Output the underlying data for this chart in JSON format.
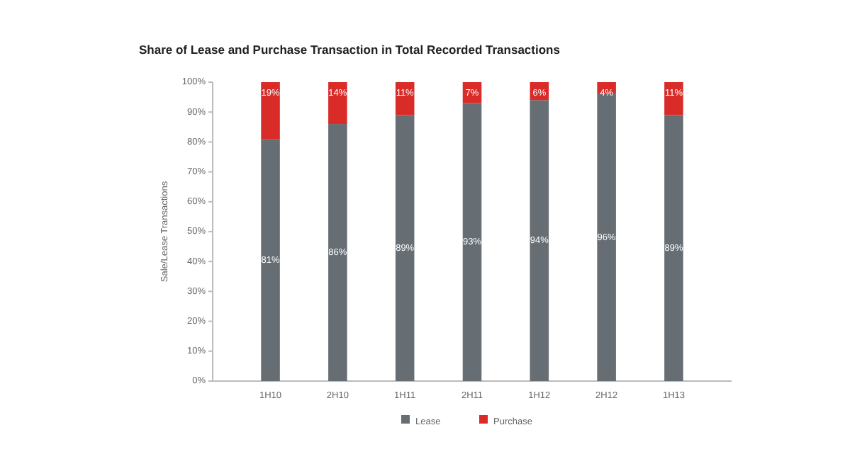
{
  "chart_data": {
    "type": "bar",
    "title": "Share of Lease and Purchase Transaction in Total Recorded Transactions",
    "ylabel": "Sale/Lease Transactions",
    "categories": [
      "1H10",
      "2H10",
      "1H11",
      "2H11",
      "1H12",
      "2H12",
      "1H13"
    ],
    "stacked": true,
    "legend": "bottom",
    "ylim": [
      0,
      100
    ],
    "yticks": [
      {
        "value": 0,
        "label": "0%"
      },
      {
        "value": 10,
        "label": "10%"
      },
      {
        "value": 20,
        "label": "20%"
      },
      {
        "value": 30,
        "label": "30%"
      },
      {
        "value": 40,
        "label": "40%"
      },
      {
        "value": 50,
        "label": "50%"
      },
      {
        "value": 60,
        "label": "60%"
      },
      {
        "value": 70,
        "label": "70%"
      },
      {
        "value": 80,
        "label": "80%"
      },
      {
        "value": 90,
        "label": "90%"
      },
      {
        "value": 100,
        "label": "100%"
      }
    ],
    "series": [
      {
        "name": "Lease",
        "color": "#666d73",
        "values": [
          81,
          86,
          89,
          93,
          94,
          96,
          89
        ],
        "value_labels": [
          "81%",
          "86%",
          "89%",
          "93%",
          "94%",
          "96%",
          "89%"
        ]
      },
      {
        "name": "Purchase",
        "color": "#d92b27",
        "values": [
          19,
          14,
          11,
          7,
          6,
          4,
          11
        ],
        "value_labels": [
          "19%",
          "14%",
          "11%",
          "7%",
          "6%",
          "4%",
          "11%"
        ]
      }
    ]
  }
}
